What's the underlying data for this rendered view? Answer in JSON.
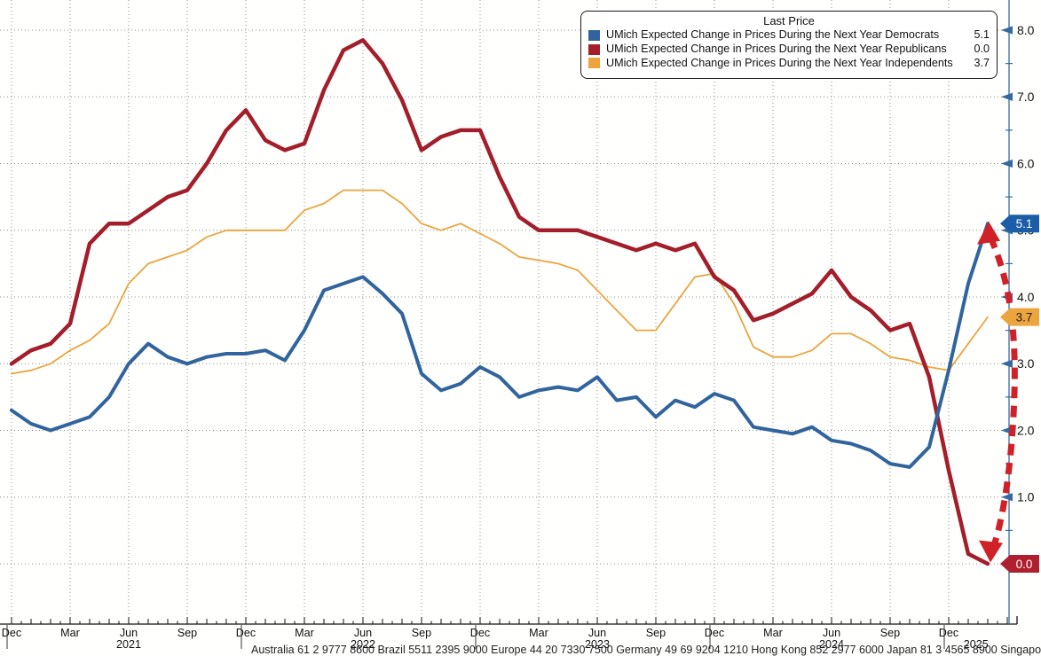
{
  "legend": {
    "title": "Last Price",
    "entries": [
      {
        "label": "UMich Expected Change in Prices During the Next Year Democrats",
        "value": "5.1",
        "color": "#31649d"
      },
      {
        "label": "UMich Expected Change in Prices During the Next Year Republicans",
        "value": "0.0",
        "color": "#a31e2a"
      },
      {
        "label": "UMich Expected Change in Prices During the Next Year Independents",
        "value": "3.7",
        "color": "#eca43d"
      }
    ]
  },
  "y_axis": {
    "color": "#36699f",
    "labels": [
      {
        "text": "8.0",
        "value": 8
      },
      {
        "text": "7.0",
        "value": 7
      },
      {
        "text": "6.0",
        "value": 6
      },
      {
        "text": "5.0",
        "value": 5
      },
      {
        "text": "4.0",
        "value": 4
      },
      {
        "text": "3.0",
        "value": 3
      },
      {
        "text": "2.0",
        "value": 2
      },
      {
        "text": "1.0",
        "value": 1
      },
      {
        "text": "0.0",
        "value": 0
      }
    ]
  },
  "x_axis": {
    "quarter_labels": [
      "Dec",
      "Mar",
      "Jun",
      "Sep",
      "Dec",
      "Mar",
      "Jun",
      "Sep",
      "Dec",
      "Mar",
      "Jun",
      "Sep",
      "Dec",
      "Mar",
      "Jun",
      "Sep",
      "Dec"
    ],
    "year_labels": [
      {
        "text": "2021",
        "month_index": 6
      },
      {
        "text": "2022",
        "month_index": 18
      },
      {
        "text": "2023",
        "month_index": 30
      },
      {
        "text": "2024",
        "month_index": 42
      },
      {
        "text": "2025",
        "month_index": 49.4
      }
    ]
  },
  "badges": [
    {
      "text": "5.1",
      "value": 5.1,
      "bg": "#1b5da6",
      "fg": "#ffffff"
    },
    {
      "text": "3.7",
      "value": 3.7,
      "bg": "#eca43d",
      "fg": "#222222"
    },
    {
      "text": "0.0",
      "value": 0.0,
      "bg": "#b01f2e",
      "fg": "#ffffff"
    }
  ],
  "annotation_arrow": {
    "color": "#cf2127",
    "from_value": 5.0,
    "to_value": 0.1
  },
  "footer": "Australia 61 2 9777 8600 Brazil 5511 2395 9000 Europe 44 20 7330 7500 Germany 49 69 9204 1210 Hong Kong 852 2977 6000 Japan 81 3 4565 8900 Singapore 65 6212 1000 U.S. 1 212 318 2000    Copyright 2025 Bloomberg Finance L.P.",
  "chart_data": {
    "type": "line",
    "title": "Last Price",
    "x_start": "Dec 2020",
    "x_end": "Feb 2025",
    "x_frequency": "monthly",
    "ylim": [
      0,
      8
    ],
    "y_major_step": 1,
    "grid": "dotted",
    "legend_position": "top-right",
    "series": [
      {
        "name": "UMich Expected Change in Prices During the Next Year Democrats",
        "color": "#31649d",
        "width": 4,
        "last_price": 5.1,
        "values": [
          2.3,
          2.1,
          2.0,
          2.1,
          2.2,
          2.5,
          3.0,
          3.3,
          3.1,
          3.0,
          3.1,
          3.15,
          3.15,
          3.2,
          3.05,
          3.5,
          4.1,
          4.2,
          4.3,
          4.05,
          3.75,
          2.85,
          2.6,
          2.7,
          2.95,
          2.8,
          2.5,
          2.6,
          2.65,
          2.6,
          2.8,
          2.45,
          2.5,
          2.2,
          2.45,
          2.35,
          2.55,
          2.45,
          2.05,
          2.0,
          1.95,
          2.05,
          1.85,
          1.8,
          1.7,
          1.5,
          1.45,
          1.75,
          2.9,
          4.2,
          5.1
        ]
      },
      {
        "name": "UMich Expected Change in Prices During the Next Year Republicans",
        "color": "#a31e2a",
        "width": 4.5,
        "last_price": 0.0,
        "values": [
          3.0,
          3.2,
          3.3,
          3.6,
          4.8,
          5.1,
          5.1,
          5.3,
          5.5,
          5.6,
          6.0,
          6.5,
          6.8,
          6.35,
          6.2,
          6.3,
          7.1,
          7.7,
          7.85,
          7.5,
          6.95,
          6.2,
          6.4,
          6.5,
          6.5,
          5.8,
          5.2,
          5.0,
          5.0,
          5.0,
          4.9,
          4.8,
          4.7,
          4.8,
          4.7,
          4.8,
          4.3,
          4.1,
          3.65,
          3.75,
          3.9,
          4.05,
          4.4,
          4.0,
          3.8,
          3.5,
          3.6,
          2.8,
          1.4,
          0.15,
          0.0
        ]
      },
      {
        "name": "UMich Expected Change in Prices During the Next Year Independents",
        "color": "#eca43d",
        "width": 1.8,
        "last_price": 3.7,
        "values": [
          2.85,
          2.9,
          3.0,
          3.2,
          3.35,
          3.6,
          4.2,
          4.5,
          4.6,
          4.7,
          4.9,
          5.0,
          5.0,
          5.0,
          5.0,
          5.3,
          5.4,
          5.6,
          5.6,
          5.6,
          5.4,
          5.1,
          5.0,
          5.1,
          4.95,
          4.8,
          4.6,
          4.55,
          4.5,
          4.4,
          4.1,
          3.8,
          3.5,
          3.5,
          3.9,
          4.3,
          4.35,
          3.9,
          3.25,
          3.1,
          3.1,
          3.2,
          3.45,
          3.45,
          3.3,
          3.1,
          3.05,
          2.95,
          2.9,
          3.3,
          3.7
        ]
      }
    ]
  }
}
